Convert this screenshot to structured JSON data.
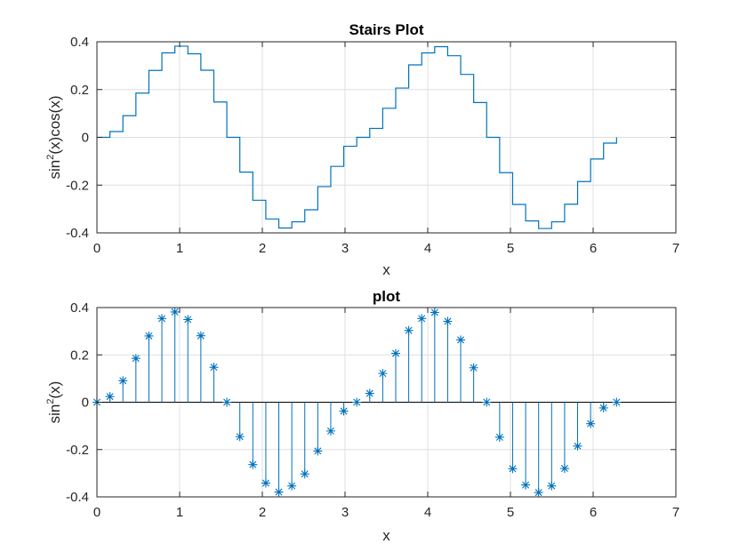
{
  "chart_data": [
    {
      "type": "stairs",
      "title": "Stairs Plot",
      "xlabel": "x",
      "ylabel_base": "sin",
      "ylabel_sup": "2",
      "ylabel_rest": "(x)cos(x)",
      "xlim": [
        0,
        7
      ],
      "ylim": [
        -0.4,
        0.4
      ],
      "xticks": [
        "0",
        "1",
        "2",
        "3",
        "4",
        "5",
        "6",
        "7"
      ],
      "yticks": [
        "-0.4",
        "-0.2",
        "0",
        "0.2",
        "0.4"
      ],
      "grid": true,
      "color": "#0072BD",
      "x": [
        0.0,
        0.15708,
        0.31416,
        0.47124,
        0.62832,
        0.7854,
        0.94248,
        1.09956,
        1.25664,
        1.41372,
        1.5708,
        1.72788,
        1.88496,
        2.04204,
        2.19911,
        2.35619,
        2.51327,
        2.67035,
        2.82743,
        2.98451,
        3.14159,
        3.29867,
        3.45575,
        3.61283,
        3.76991,
        3.92699,
        4.08407,
        4.24115,
        4.39823,
        4.55531,
        4.71239,
        4.86947,
        5.02655,
        5.18363,
        5.34071,
        5.49779,
        5.65487,
        5.81195,
        5.96903,
        6.12611,
        6.28319
      ],
      "y": [
        0.0,
        0.0241,
        0.0908,
        0.1852,
        0.28,
        0.3536,
        0.3816,
        0.3497,
        0.2809,
        0.1478,
        0.0,
        -0.1455,
        -0.2635,
        -0.3416,
        -0.3795,
        -0.3536,
        -0.3032,
        -0.2062,
        -0.1216,
        -0.0374,
        0.0,
        0.0374,
        0.1216,
        0.2062,
        0.3032,
        0.3536,
        0.3795,
        0.3416,
        0.2635,
        0.1455,
        0.0,
        -0.1478,
        -0.2809,
        -0.3497,
        -0.3816,
        -0.3536,
        -0.28,
        -0.1852,
        -0.0908,
        -0.0241,
        0.0
      ],
      "y_display_note": ""
    },
    {
      "type": "stem",
      "title": "plot",
      "xlabel": "x",
      "ylabel_base": "sin",
      "ylabel_sup": "2",
      "ylabel_rest": "(x)",
      "xlim": [
        0,
        7
      ],
      "ylim": [
        -0.4,
        0.4
      ],
      "xticks": [
        "0",
        "1",
        "2",
        "3",
        "4",
        "5",
        "6",
        "7"
      ],
      "yticks": [
        "-0.4",
        "-0.2",
        "0",
        "0.2",
        "0.4"
      ],
      "grid": true,
      "color": "#0072BD",
      "marker": "asterisk",
      "x": [
        0.0,
        0.15708,
        0.31416,
        0.47124,
        0.62832,
        0.7854,
        0.94248,
        1.09956,
        1.25664,
        1.41372,
        1.5708,
        1.72788,
        1.88496,
        2.04204,
        2.19911,
        2.35619,
        2.51327,
        2.67035,
        2.82743,
        2.98451,
        3.14159,
        3.29867,
        3.45575,
        3.61283,
        3.76991,
        3.92699,
        4.08407,
        4.24115,
        4.39823,
        4.55531,
        4.71239,
        4.86947,
        5.02655,
        5.18363,
        5.34071,
        5.49779,
        5.65487,
        5.81195,
        5.96903,
        6.12611,
        6.28319
      ],
      "y": [
        0.0,
        0.0241,
        0.0908,
        0.1852,
        0.28,
        0.3536,
        0.3816,
        0.3497,
        0.2809,
        0.1478,
        0.0,
        -0.1455,
        -0.2635,
        -0.3416,
        -0.3795,
        -0.3536,
        -0.3032,
        -0.2062,
        -0.1216,
        -0.0374,
        0.0,
        0.0374,
        0.1216,
        0.2062,
        0.3032,
        0.3536,
        0.3795,
        0.3416,
        0.2635,
        0.1455,
        0.0,
        -0.1478,
        -0.2809,
        -0.3497,
        -0.3816,
        -0.3536,
        -0.28,
        -0.1852,
        -0.0908,
        -0.0241,
        0.0
      ]
    }
  ]
}
